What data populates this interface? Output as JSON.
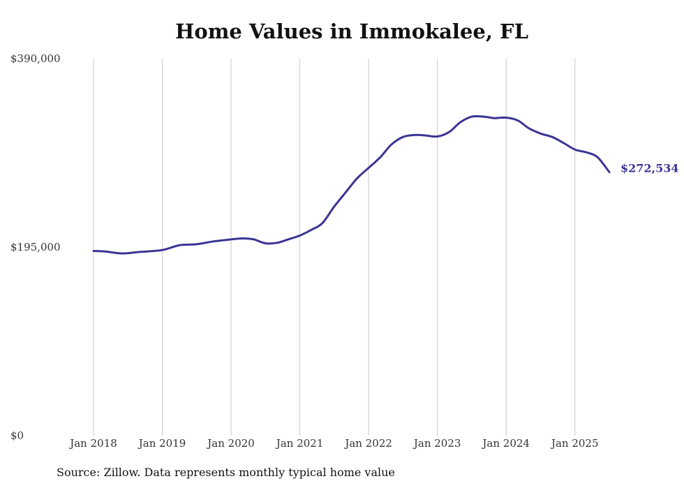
{
  "chart_data": {
    "type": "line",
    "title": "Home Values in Immokalee, FL",
    "source": "Source: Zillow. Data represents monthly typical home value",
    "xlabel": "",
    "ylabel": "",
    "ylim": [
      0,
      390000
    ],
    "y_ticks": [
      "$0",
      "$195,000",
      "$390,000"
    ],
    "y_tick_values": [
      0,
      195000,
      390000
    ],
    "x_ticks": [
      "Jan 2018",
      "Jan 2019",
      "Jan 2020",
      "Jan 2021",
      "Jan 2022",
      "Jan 2023",
      "Jan 2024",
      "Jan 2025"
    ],
    "x_tick_values": [
      2018,
      2019,
      2020,
      2021,
      2022,
      2023,
      2024,
      2025
    ],
    "xlim": [
      2018,
      2025.5
    ],
    "grid": "vertical",
    "line_color": "#3b3494",
    "end_label": "$272,534",
    "series": [
      {
        "x": [
          2018.0,
          2018.17,
          2018.42,
          2018.67,
          2019.0,
          2019.25,
          2019.5,
          2019.75,
          2020.0,
          2020.17,
          2020.33,
          2020.5,
          2020.67,
          2020.83,
          2021.0,
          2021.17,
          2021.33,
          2021.5,
          2021.67,
          2021.83,
          2022.0,
          2022.17,
          2022.33,
          2022.5,
          2022.67,
          2022.83,
          2023.0,
          2023.17,
          2023.33,
          2023.5,
          2023.67,
          2023.83,
          2024.0,
          2024.17,
          2024.33,
          2024.5,
          2024.67,
          2024.83,
          2025.0,
          2025.17,
          2025.33,
          2025.5
        ],
        "y": [
          191000,
          190500,
          188500,
          190000,
          192000,
          197000,
          198000,
          201000,
          203000,
          204000,
          203000,
          199000,
          199500,
          203000,
          207000,
          213000,
          220000,
          237000,
          252000,
          266000,
          277000,
          288000,
          301000,
          309000,
          311000,
          310500,
          309500,
          314000,
          324000,
          330000,
          330000,
          328500,
          329000,
          326000,
          318000,
          312500,
          309000,
          303000,
          296000,
          293000,
          288000,
          272534
        ]
      }
    ]
  }
}
